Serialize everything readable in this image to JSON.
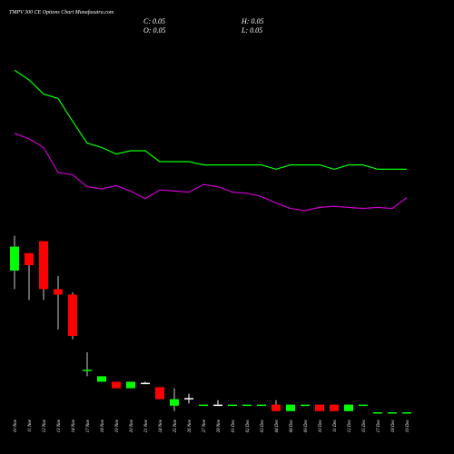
{
  "chart_data": {
    "type": "candlestick",
    "title": "TMPV 300  CE Options Chart Munafasutra.com",
    "annotations": [
      "C: 0.05",
      "H: 0.05",
      "O: 0.05",
      "L: 0.05"
    ],
    "categories": [
      "10 Nov",
      "11 Nov",
      "12 Nov",
      "13 Nov",
      "14 Nov",
      "17 Nov",
      "18 Nov",
      "19 Nov",
      "20 Nov",
      "21 Nov",
      "24 Nov",
      "25 Nov",
      "26 Nov",
      "27 Nov",
      "28 Nov",
      "01 Dec",
      "02 Dec",
      "03 Dec",
      "04 Dec",
      "08 Dec",
      "09 Dec",
      "10 Dec",
      "11 Dec",
      "12 Dec",
      "15 Dec",
      "17 Dec",
      "18 Dec",
      "19 Dec"
    ],
    "open": [
      1.35,
      1.51,
      1.62,
      1.18,
      1.13,
      0.43,
      0.33,
      0.33,
      0.27,
      0.32,
      0.28,
      0.11,
      0.18,
      0.12,
      0.12,
      0.12,
      0.12,
      0.12,
      0.12,
      0.06,
      0.12,
      0.12,
      0.12,
      0.06,
      0.12,
      0.05,
      0.05,
      0.05
    ],
    "high": [
      1.67,
      1.51,
      1.62,
      1.3,
      1.15,
      0.6,
      0.38,
      0.33,
      0.33,
      0.33,
      0.28,
      0.27,
      0.22,
      0.12,
      0.16,
      0.12,
      0.12,
      0.12,
      0.16,
      0.12,
      0.12,
      0.12,
      0.12,
      0.12,
      0.12,
      0.05,
      0.05,
      0.05
    ],
    "low": [
      1.18,
      1.08,
      1.08,
      0.81,
      0.72,
      0.38,
      0.33,
      0.27,
      0.27,
      0.32,
      0.17,
      0.06,
      0.13,
      0.12,
      0.12,
      0.12,
      0.12,
      0.12,
      0.06,
      0.06,
      0.12,
      0.06,
      0.06,
      0.06,
      0.12,
      0.05,
      0.05,
      0.05
    ],
    "close": [
      1.57,
      1.4,
      1.18,
      1.13,
      0.75,
      0.44,
      0.38,
      0.27,
      0.33,
      0.32,
      0.17,
      0.17,
      0.18,
      0.12,
      0.12,
      0.12,
      0.12,
      0.12,
      0.06,
      0.12,
      0.12,
      0.06,
      0.06,
      0.12,
      0.12,
      0.05,
      0.05,
      0.05
    ],
    "up_color": "#00ff00",
    "down_color": "#ff0000",
    "lines": [
      {
        "color": "#00ff00",
        "values": [
          3.19,
          3.1,
          2.97,
          2.93,
          2.72,
          2.52,
          2.48,
          2.42,
          2.45,
          2.45,
          2.35,
          2.35,
          2.35,
          2.32,
          2.32,
          2.32,
          2.32,
          2.32,
          2.28,
          2.32,
          2.32,
          2.32,
          2.28,
          2.32,
          2.32,
          2.28,
          2.28,
          2.28
        ]
      },
      {
        "color": "#cc00cc",
        "values": [
          2.61,
          2.56,
          2.48,
          2.25,
          2.23,
          2.12,
          2.1,
          2.13,
          2.08,
          2.01,
          2.09,
          2.08,
          2.07,
          2.14,
          2.12,
          2.07,
          2.06,
          2.03,
          1.97,
          1.92,
          1.9,
          1.93,
          1.94,
          1.93,
          1.92,
          1.93,
          1.92,
          2.02
        ]
      }
    ],
    "ylim": [
      0,
      3.5
    ]
  }
}
